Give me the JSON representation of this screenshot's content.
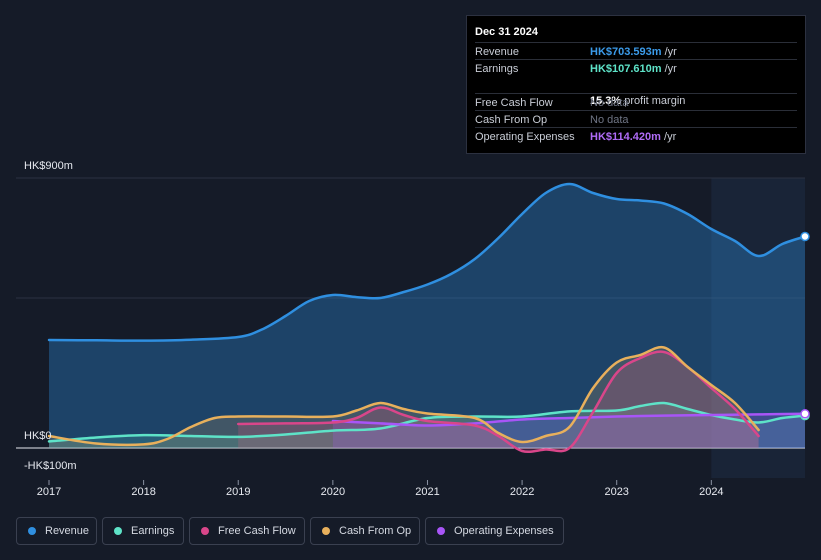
{
  "tooltip": {
    "date": "Dec 31 2024",
    "rows": [
      {
        "label": "Revenue",
        "value": "HK$703.593m",
        "unit": " /yr",
        "color": "#3b9bea"
      },
      {
        "label": "Earnings",
        "value": "HK$107.610m",
        "unit": " /yr",
        "color": "#5ee3c8"
      },
      {
        "label": "Free Cash Flow",
        "value": "No data"
      },
      {
        "label": "Cash From Op",
        "value": "No data"
      },
      {
        "label": "Operating Expenses",
        "value": "HK$114.420m",
        "unit": " /yr",
        "color": "#a855f7"
      }
    ],
    "margin_value": "15.3%",
    "margin_label": " profit margin"
  },
  "legend": [
    {
      "label": "Revenue",
      "color": "#2f8fe0"
    },
    {
      "label": "Earnings",
      "color": "#5ee3c8"
    },
    {
      "label": "Free Cash Flow",
      "color": "#d9468a"
    },
    {
      "label": "Cash From Op",
      "color": "#e8b05c"
    },
    {
      "label": "Operating Expenses",
      "color": "#a855f7"
    }
  ],
  "chart_data": {
    "type": "line",
    "y_tick_labels": [
      "HK$900m",
      "HK$0",
      "-HK$100m"
    ],
    "ylim": [
      -100,
      900
    ],
    "x_tick_labels": [
      "2017",
      "2018",
      "2019",
      "2020",
      "2021",
      "2022",
      "2023",
      "2024"
    ],
    "xlim": [
      2016.7,
      2024.99
    ],
    "forecast_shade_from": 2024.0,
    "grid": true,
    "series": [
      {
        "name": "Revenue",
        "color": "#2f8fe0",
        "x": [
          2017.0,
          2017.5,
          2018.0,
          2018.5,
          2019.0,
          2019.25,
          2019.5,
          2019.75,
          2020.0,
          2020.25,
          2020.5,
          2020.75,
          2021.0,
          2021.25,
          2021.5,
          2021.75,
          2022.0,
          2022.25,
          2022.5,
          2022.75,
          2023.0,
          2023.25,
          2023.5,
          2023.75,
          2024.0,
          2024.25,
          2024.5,
          2024.75,
          2024.99
        ],
        "y": [
          360,
          359,
          358,
          361,
          370,
          395,
          440,
          490,
          510,
          503,
          500,
          520,
          545,
          580,
          630,
          700,
          780,
          850,
          880,
          850,
          830,
          825,
          815,
          780,
          730,
          690,
          640,
          680,
          705
        ]
      },
      {
        "name": "Earnings",
        "color": "#5ee3c8",
        "x": [
          2017.0,
          2017.5,
          2018.0,
          2018.5,
          2019.0,
          2019.5,
          2020.0,
          2020.5,
          2021.0,
          2021.5,
          2022.0,
          2022.5,
          2023.0,
          2023.25,
          2023.5,
          2023.75,
          2024.0,
          2024.25,
          2024.5,
          2024.75,
          2024.99
        ],
        "y": [
          22,
          35,
          43,
          40,
          37,
          45,
          58,
          65,
          100,
          105,
          105,
          122,
          125,
          140,
          150,
          130,
          110,
          95,
          85,
          100,
          108
        ]
      },
      {
        "name": "Free Cash Flow",
        "color": "#d9468a",
        "x": [
          2019.0,
          2019.5,
          2020.0,
          2020.25,
          2020.5,
          2020.75,
          2021.0,
          2021.5,
          2021.75,
          2022.0,
          2022.25,
          2022.5,
          2022.75,
          2023.0,
          2023.25,
          2023.5,
          2023.75,
          2024.0,
          2024.25,
          2024.5
        ],
        "y": [
          80,
          82,
          85,
          100,
          135,
          110,
          90,
          75,
          40,
          -10,
          -5,
          0,
          120,
          250,
          300,
          320,
          270,
          200,
          130,
          40
        ]
      },
      {
        "name": "Cash From Op",
        "color": "#e8b05c",
        "x": [
          2017.0,
          2017.5,
          2018.0,
          2018.25,
          2018.5,
          2018.75,
          2019.0,
          2019.5,
          2020.0,
          2020.25,
          2020.5,
          2020.75,
          2021.0,
          2021.5,
          2021.75,
          2022.0,
          2022.25,
          2022.5,
          2022.75,
          2023.0,
          2023.25,
          2023.5,
          2023.75,
          2024.0,
          2024.25,
          2024.5
        ],
        "y": [
          40,
          15,
          12,
          30,
          70,
          100,
          105,
          105,
          105,
          125,
          150,
          130,
          115,
          100,
          50,
          20,
          40,
          70,
          200,
          285,
          310,
          335,
          270,
          210,
          150,
          60
        ]
      },
      {
        "name": "Operating Expenses",
        "color": "#a855f7",
        "x": [
          2020.0,
          2020.5,
          2021.0,
          2021.5,
          2022.0,
          2022.5,
          2023.0,
          2023.5,
          2024.0,
          2024.5,
          2024.99
        ],
        "y": [
          90,
          82,
          75,
          82,
          95,
          100,
          105,
          108,
          110,
          112,
          114
        ]
      }
    ]
  }
}
